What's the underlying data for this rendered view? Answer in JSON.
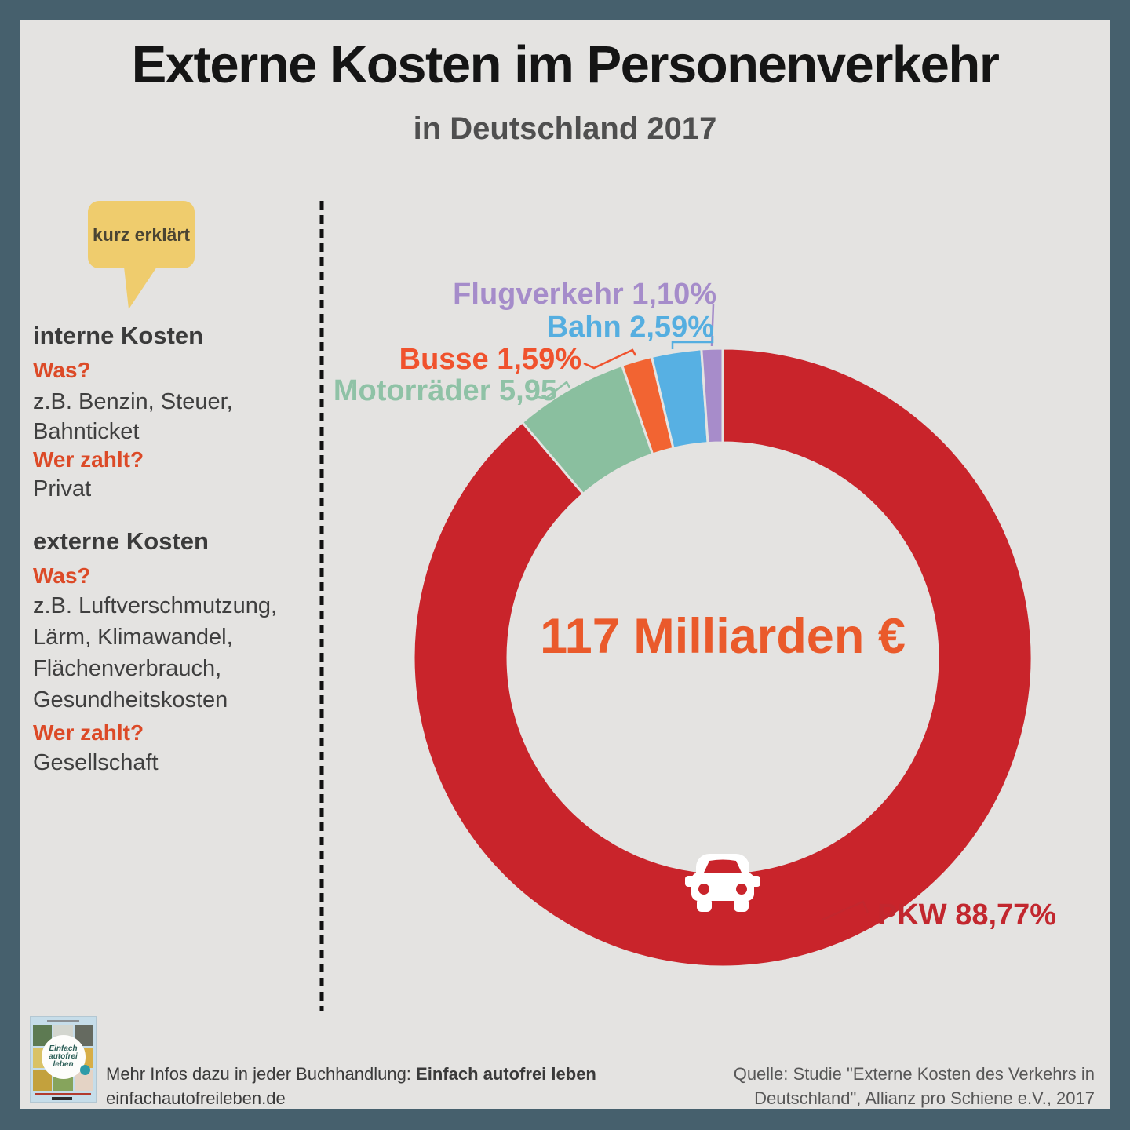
{
  "frame": {
    "border_color": "#46606d",
    "background_color": "#e4e3e1"
  },
  "header": {
    "title": "Externe Kosten im Personenverkehr",
    "subtitle": "in Deutschland 2017"
  },
  "explainer": {
    "bubble_label": "kurz erklärt",
    "bubble_color": "#efcc6d",
    "internal": {
      "heading": "interne Kosten",
      "q1": "Was?",
      "a1_line1": "z.B. Benzin, Steuer,",
      "a1_line2": "Bahnticket",
      "q2": "Wer zahlt?",
      "a2": "Privat"
    },
    "external": {
      "heading": "externe Kosten",
      "q1": "Was?",
      "a1_line1": "z.B. Luftverschmutzung,",
      "a1_line2": "Lärm, Klimawandel,",
      "a1_line3": "Flächenverbrauch,",
      "a1_line4": "Gesundheitskosten",
      "q2": "Wer zahlt?",
      "a2": "Gesellschaft"
    }
  },
  "chart_data": {
    "type": "pie",
    "donut": true,
    "start": "12 o'clock, clockwise",
    "title": "Externe Kosten im Personenverkehr",
    "subtitle": "in Deutschland 2017",
    "center_label": "117 Milliarden €",
    "center_color": "#ea5a2b",
    "unit": "% of 117 Milliarden €",
    "segments": [
      {
        "id": "pkw",
        "label": "PKW",
        "display": "PKW 88,77%",
        "value": 88.77,
        "color": "#c9242b",
        "label_color": "#c2272e"
      },
      {
        "id": "motorraeder",
        "label": "Motorräder",
        "display": "Motorräder 5,95",
        "value": 5.95,
        "color": "#8abf9f",
        "label_color": "#8fc2a6"
      },
      {
        "id": "busse",
        "label": "Busse",
        "display": "Busse 1,59%",
        "value": 1.59,
        "color": "#f26432",
        "label_color": "#f0522d"
      },
      {
        "id": "bahn",
        "label": "Bahn",
        "display": "Bahn 2,59%",
        "value": 2.59,
        "color": "#57b0e3",
        "label_color": "#55aee0"
      },
      {
        "id": "flugverkehr",
        "label": "Flugverkehr",
        "display": "Flugverkehr 1,10%",
        "value": 1.1,
        "color": "#a78cca",
        "label_color": "#a58cca"
      }
    ]
  },
  "footer": {
    "book_title": "Einfach autofrei leben",
    "info_prefix": "Mehr Infos dazu in jeder Buchhandlung: ",
    "info_bold": "Einfach autofrei leben",
    "website": "einfachautofreileben.de",
    "source_line1": "Quelle: Studie \"Externe Kosten des Verkehrs in",
    "source_line2": "Deutschland\", Allianz pro Schiene e.V., 2017"
  }
}
